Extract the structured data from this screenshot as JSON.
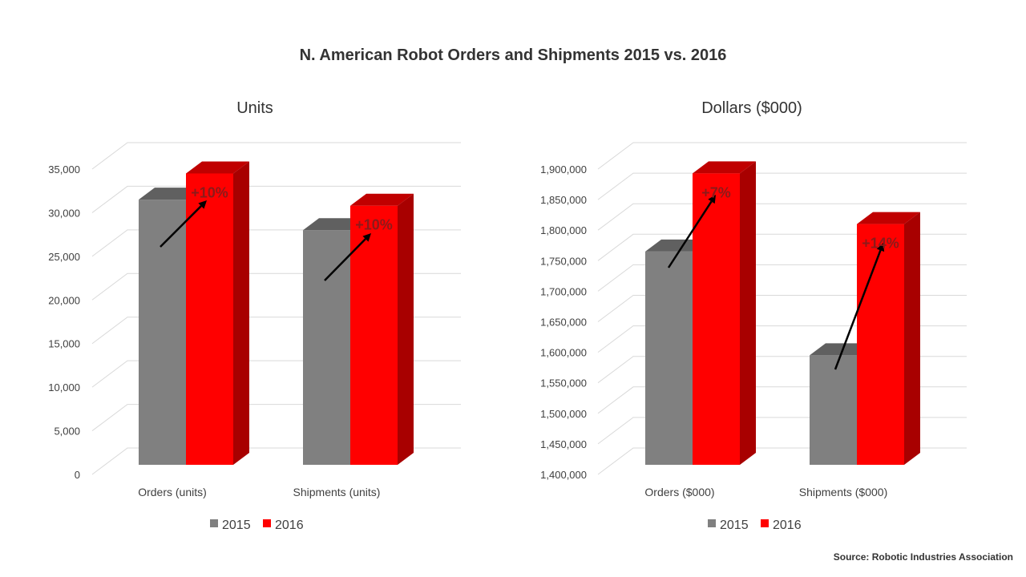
{
  "title": "N. American Robot Orders and Shipments 2015 vs. 2016",
  "source": "Source: Robotic Industries Association",
  "colors": {
    "series_2015": "#808080",
    "series_2015_top": "#606060",
    "series_2016": "#ff0000",
    "series_2016_side": "#a80000",
    "series_2016_top": "#c00000",
    "arrow": "#000000",
    "annotation": "#8c1a1a",
    "grid": "#d9d9d9"
  },
  "chart_data": [
    {
      "type": "bar",
      "title": "Units",
      "categories": [
        "Orders (units)",
        "Shipments (units)"
      ],
      "series": [
        {
          "name": "2015",
          "values": [
            31500,
            28000
          ]
        },
        {
          "name": "2016",
          "values": [
            34500,
            30800
          ]
        }
      ],
      "annotations": [
        "+10%",
        "+10%"
      ],
      "ylim": [
        0,
        35000
      ],
      "yticks": [
        0,
        5000,
        10000,
        15000,
        20000,
        25000,
        30000,
        35000
      ],
      "ytick_labels": [
        "0",
        "5,000",
        "10,000",
        "15,000",
        "20,000",
        "25,000",
        "30,000",
        "35,000"
      ],
      "grid": true,
      "legend": "bottom"
    },
    {
      "type": "bar",
      "title": "Dollars ($000)",
      "categories": [
        "Orders ($000)",
        "Shipments ($000)"
      ],
      "series": [
        {
          "name": "2015",
          "values": [
            1765000,
            1595000
          ]
        },
        {
          "name": "2016",
          "values": [
            1893000,
            1810000
          ]
        }
      ],
      "annotations": [
        "+7%",
        "+14%"
      ],
      "ylim": [
        1400000,
        1900000
      ],
      "yticks": [
        1400000,
        1450000,
        1500000,
        1550000,
        1600000,
        1650000,
        1700000,
        1750000,
        1800000,
        1850000,
        1900000
      ],
      "ytick_labels": [
        "1,400,000",
        "1,450,000",
        "1,500,000",
        "1,550,000",
        "1,600,000",
        "1,650,000",
        "1,700,000",
        "1,750,000",
        "1,800,000",
        "1,850,000",
        "1,900,000"
      ],
      "grid": true,
      "legend": "bottom"
    }
  ]
}
